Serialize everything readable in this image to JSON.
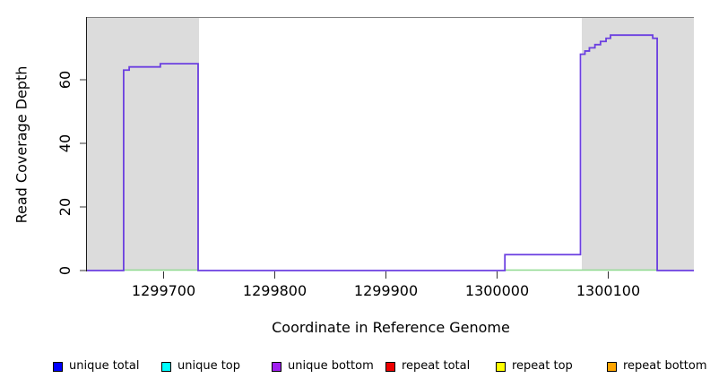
{
  "chart_data": {
    "type": "line",
    "step": true,
    "title": "",
    "xlabel": "Coordinate in Reference Genome",
    "ylabel": "Read Coverage Depth",
    "xlim": [
      1299631,
      1300177
    ],
    "ylim": [
      0,
      79.4
    ],
    "x_ticks": [
      1299700,
      1299800,
      1299900,
      1300000,
      1300100
    ],
    "y_ticks": [
      0,
      20,
      40,
      60
    ],
    "grid": false,
    "legend_position": "bottom",
    "shaded_regions": [
      {
        "start": 1299631,
        "end": 1299732
      },
      {
        "start": 1300076,
        "end": 1300177
      }
    ],
    "series": [
      {
        "name": "unique total",
        "color": "#0000FF",
        "visible_line": false
      },
      {
        "name": "unique top",
        "color": "#00FFFF",
        "visible_line": false
      },
      {
        "name": "unique bottom",
        "color": "#A020F0",
        "line_color": "#6B3FE0",
        "visible_line": true,
        "steps": [
          [
            1299631,
            0
          ],
          [
            1299664,
            63
          ],
          [
            1299669,
            64
          ],
          [
            1299697,
            65
          ],
          [
            1299731,
            0
          ],
          [
            1300007,
            5
          ],
          [
            1300075,
            68
          ],
          [
            1300079,
            69
          ],
          [
            1300083,
            70
          ],
          [
            1300088,
            71
          ],
          [
            1300093,
            72
          ],
          [
            1300098,
            73
          ],
          [
            1300102,
            74
          ],
          [
            1300140,
            73
          ],
          [
            1300144,
            0
          ]
        ]
      },
      {
        "name": "repeat total",
        "color": "#EE0000",
        "visible_line": false
      },
      {
        "name": "repeat top",
        "color": "#FFFF00",
        "visible_line": false
      },
      {
        "name": "repeat bottom",
        "color": "#FFA500",
        "visible_line": false
      }
    ],
    "zero_line_segments": {
      "color": "#8FD98F",
      "segments": [
        [
          1299664,
          1299731
        ],
        [
          1300007,
          1300144
        ]
      ]
    }
  },
  "legend": {
    "items": [
      {
        "label": "unique total",
        "color": "#0000FF"
      },
      {
        "label": "unique top",
        "color": "#00FFFF"
      },
      {
        "label": "unique bottom",
        "color": "#A020F0"
      },
      {
        "label": "repeat total",
        "color": "#EE0000"
      },
      {
        "label": "repeat top",
        "color": "#FFFF00"
      },
      {
        "label": "repeat bottom",
        "color": "#FFA500"
      }
    ]
  },
  "colors": {
    "shaded_region": "#DCDCDC",
    "plot_top_border": "#7F7F7F",
    "axis_line": "#1A1A1A",
    "tick": "#333333",
    "background": "#FFFFFF"
  }
}
